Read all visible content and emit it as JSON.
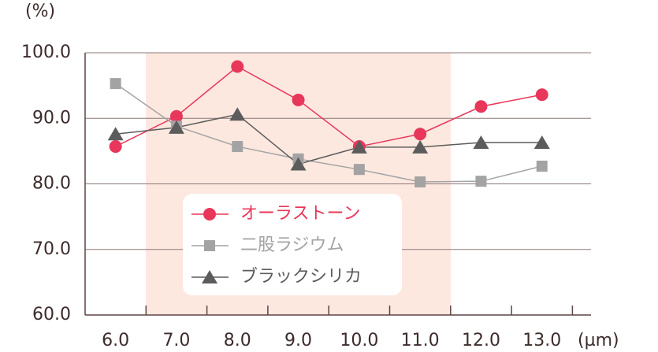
{
  "chart_data": {
    "type": "line",
    "y_label": "(%)",
    "x_label": "(µm)",
    "categories": [
      "6.0",
      "7.0",
      "8.0",
      "9.0",
      "10.0",
      "11.0",
      "12.0",
      "13.0"
    ],
    "series": [
      {
        "name": "オーラストーン",
        "color": "#e8375a",
        "marker": "circle",
        "values": [
          85.7,
          90.3,
          97.9,
          92.8,
          85.7,
          87.6,
          91.8,
          93.6
        ]
      },
      {
        "name": "二股ラジウム",
        "color": "#a3a3a3",
        "marker": "square",
        "values": [
          95.3,
          88.8,
          85.7,
          83.8,
          82.2,
          80.3,
          80.4,
          82.7
        ]
      },
      {
        "name": "ブラックシリカ",
        "color": "#5c5c5c",
        "marker": "triangle",
        "values": [
          87.6,
          88.6,
          90.6,
          83.0,
          85.6,
          85.6,
          86.3,
          86.3
        ]
      }
    ],
    "ylim": [
      60,
      100
    ],
    "yticks": [
      {
        "value": 60,
        "label": "60.0"
      },
      {
        "value": 70,
        "label": "70.0"
      },
      {
        "value": 80,
        "label": "80.0"
      },
      {
        "value": 90,
        "label": "90.0"
      },
      {
        "value": 100,
        "label": "100.0"
      }
    ],
    "grid": true
  }
}
